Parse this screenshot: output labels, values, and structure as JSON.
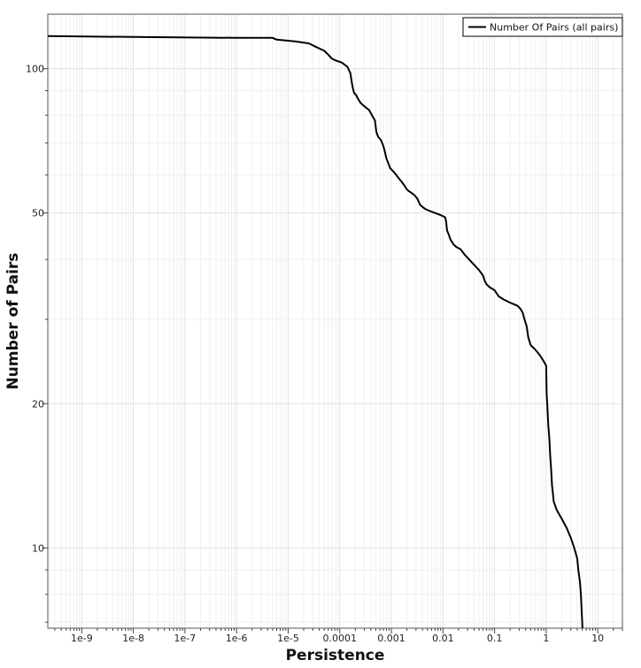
{
  "chart_data": {
    "type": "line",
    "title": "",
    "xlabel": "Persistence",
    "ylabel": "Number of Pairs",
    "x_scale": "log",
    "y_scale": "log",
    "xlim": [
      2.2e-10,
      30
    ],
    "ylim": [
      6.8,
      130
    ],
    "grid": true,
    "legend_position": "top-right",
    "x_tick_labels": [
      "1e-9",
      "1e-8",
      "1e-7",
      "1e-6",
      "1e-5",
      "0.0001",
      "0.001",
      "0.01",
      "0.1",
      "1",
      "10"
    ],
    "y_tick_labels": [
      "10",
      "20",
      "50",
      "100"
    ],
    "series": [
      {
        "name": "Number Of Pairs (all pairs)",
        "color": "#000000",
        "x": [
          2.2e-10,
          1e-08,
          1e-06,
          5e-06,
          6e-06,
          1.4e-05,
          2.5e-05,
          3.5e-05,
          5e-05,
          6e-05,
          7e-05,
          8.5e-05,
          0.00011,
          0.00014,
          0.00016,
          0.00017,
          0.00018,
          0.00019,
          0.00021,
          0.00022,
          0.00025,
          0.00028,
          0.00032,
          0.00037,
          0.00042,
          0.00045,
          0.00048,
          0.00051,
          0.00053,
          0.00056,
          0.00063,
          0.0007,
          0.00075,
          0.0008,
          0.00085,
          0.00095,
          0.0011,
          0.00125,
          0.0014,
          0.0016,
          0.0018,
          0.002,
          0.0022,
          0.0025,
          0.0028,
          0.0032,
          0.0036,
          0.004,
          0.0045,
          0.0055,
          0.007,
          0.009,
          0.011,
          0.0115,
          0.012,
          0.013,
          0.014,
          0.016,
          0.018,
          0.022,
          0.026,
          0.032,
          0.04,
          0.05,
          0.06,
          0.065,
          0.07,
          0.08,
          0.1,
          0.12,
          0.15,
          0.2,
          0.28,
          0.32,
          0.35,
          0.38,
          0.42,
          0.45,
          0.5,
          0.6,
          0.7,
          0.8,
          0.9,
          1.0,
          1.02,
          1.05,
          1.1,
          1.15,
          1.2,
          1.25,
          1.3,
          1.35,
          1.4,
          1.6,
          2.0,
          2.5,
          3.0,
          3.5,
          4.0,
          4.2,
          4.5,
          4.7,
          5.0,
          5.05
        ],
        "y": [
          117,
          116.5,
          116,
          116,
          115,
          114,
          113,
          111,
          109,
          107,
          105,
          104,
          103,
          101,
          98,
          94,
          91,
          89,
          88,
          87,
          85,
          84,
          83,
          82,
          80,
          79,
          78,
          74,
          73,
          72,
          71,
          69,
          67,
          65,
          64,
          62,
          61,
          60,
          59,
          58,
          57,
          56,
          55.5,
          55,
          54.5,
          53.5,
          52,
          51.5,
          51,
          50.5,
          50,
          49.5,
          49,
          48,
          46,
          45,
          44,
          43,
          42.5,
          42,
          41,
          40,
          39,
          38,
          37,
          36,
          35.5,
          35,
          34.5,
          33.5,
          33,
          32.5,
          32,
          31.5,
          31,
          30,
          29,
          27.5,
          26.5,
          26,
          25.5,
          25,
          24.5,
          24,
          21,
          20,
          18,
          17,
          15.5,
          14.5,
          13.5,
          13,
          12.5,
          12,
          11.5,
          11,
          10.5,
          10,
          9.5,
          9,
          8.5,
          8,
          7,
          6.8
        ]
      }
    ]
  }
}
